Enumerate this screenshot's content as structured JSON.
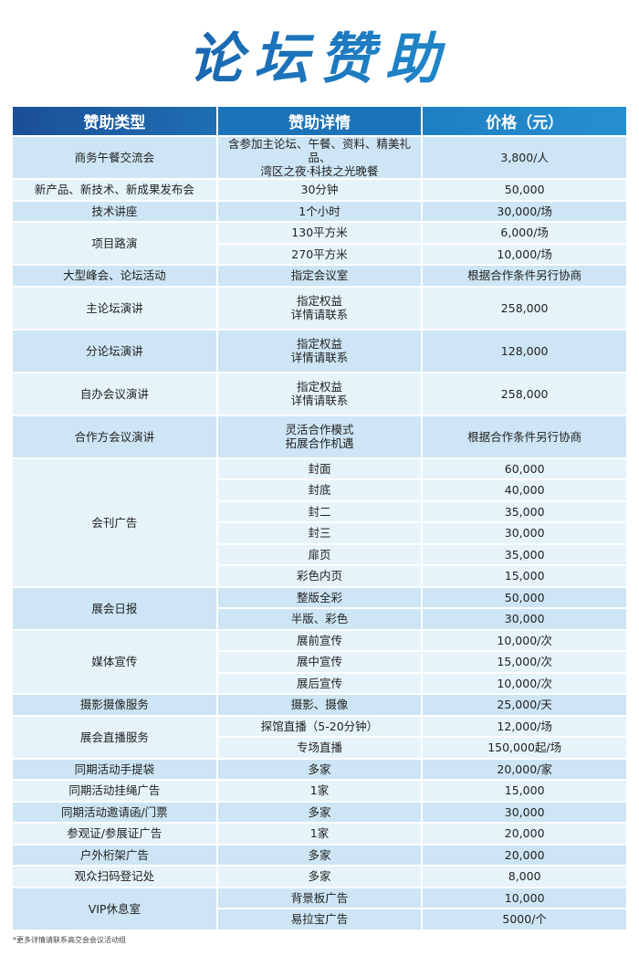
{
  "title": "论坛赞助",
  "colors": {
    "accent": "#1d73b8",
    "row_dark": "#cde5f4",
    "row_light": "#e6f3fb"
  },
  "table": {
    "headers": [
      "赞助类型",
      "赞助详情",
      "价格（元）"
    ],
    "groups": [
      {
        "type": "商务午餐交流会",
        "items": [
          {
            "detail": "含参加主论坛、午餐、资料、精美礼品、\n湾区之夜·科技之光晚餐",
            "price": "3,800/人"
          }
        ]
      },
      {
        "type": "新产品、新技术、新成果发布会",
        "items": [
          {
            "detail": "30分钟",
            "price": "50,000"
          }
        ]
      },
      {
        "type": "技术讲座",
        "items": [
          {
            "detail": "1个小时",
            "price": "30,000/场"
          }
        ]
      },
      {
        "type": "项目路演",
        "items": [
          {
            "detail": "130平方米",
            "price": "6,000/场"
          },
          {
            "detail": "270平方米",
            "price": "10,000/场"
          }
        ]
      },
      {
        "type": "大型峰会、论坛活动",
        "items": [
          {
            "detail": "指定会议室",
            "price": "根据合作条件另行协商"
          }
        ]
      },
      {
        "type": "主论坛演讲",
        "items": [
          {
            "detail": "指定权益\n详情请联系",
            "price": "258,000"
          }
        ]
      },
      {
        "type": "分论坛演讲",
        "items": [
          {
            "detail": "指定权益\n详情请联系",
            "price": "128,000"
          }
        ]
      },
      {
        "type": "自办会议演讲",
        "items": [
          {
            "detail": "指定权益\n详情请联系",
            "price": "258,000"
          }
        ]
      },
      {
        "type": "合作方会议演讲",
        "items": [
          {
            "detail": "灵活合作模式\n拓展合作机遇",
            "price": "根据合作条件另行协商"
          }
        ]
      },
      {
        "type": "会刊广告",
        "items": [
          {
            "detail": "封面",
            "price": "60,000"
          },
          {
            "detail": "封底",
            "price": "40,000"
          },
          {
            "detail": "封二",
            "price": "35,000"
          },
          {
            "detail": "封三",
            "price": "30,000"
          },
          {
            "detail": "扉页",
            "price": "35,000"
          },
          {
            "detail": "彩色内页",
            "price": "15,000"
          }
        ]
      },
      {
        "type": "展会日报",
        "items": [
          {
            "detail": "整版全彩",
            "price": "50,000"
          },
          {
            "detail": "半版、彩色",
            "price": "30,000"
          }
        ]
      },
      {
        "type": "媒体宣传",
        "items": [
          {
            "detail": "展前宣传",
            "price": "10,000/次"
          },
          {
            "detail": "展中宣传",
            "price": "15,000/次"
          },
          {
            "detail": "展后宣传",
            "price": "10,000/次"
          }
        ]
      },
      {
        "type": "摄影摄像服务",
        "items": [
          {
            "detail": "摄影、摄像",
            "price": "25,000/天"
          }
        ]
      },
      {
        "type": "展会直播服务",
        "items": [
          {
            "detail": "探馆直播（5-20分钟）",
            "price": "12,000/场"
          },
          {
            "detail": "专场直播",
            "price": "150,000起/场"
          }
        ]
      },
      {
        "type": "同期活动手提袋",
        "items": [
          {
            "detail": "多家",
            "price": "20,000/家"
          }
        ]
      },
      {
        "type": "同期活动挂绳广告",
        "items": [
          {
            "detail": "1家",
            "price": "15,000"
          }
        ]
      },
      {
        "type": "同期活动邀请函/门票",
        "items": [
          {
            "detail": "多家",
            "price": "30,000"
          }
        ]
      },
      {
        "type": "参观证/参展证广告",
        "items": [
          {
            "detail": "1家",
            "price": "20,000"
          }
        ]
      },
      {
        "type": "户外桁架广告",
        "items": [
          {
            "detail": "多家",
            "price": "20,000"
          }
        ]
      },
      {
        "type": "观众扫码登记处",
        "items": [
          {
            "detail": "多家",
            "price": "8,000"
          }
        ]
      },
      {
        "type": "VIP休息室",
        "items": [
          {
            "detail": "背景板广告",
            "price": "10,000"
          },
          {
            "detail": "易拉宝广告",
            "price": "5000/个"
          }
        ]
      }
    ]
  },
  "footnote": "*更多详情请联系高交会会议活动组"
}
